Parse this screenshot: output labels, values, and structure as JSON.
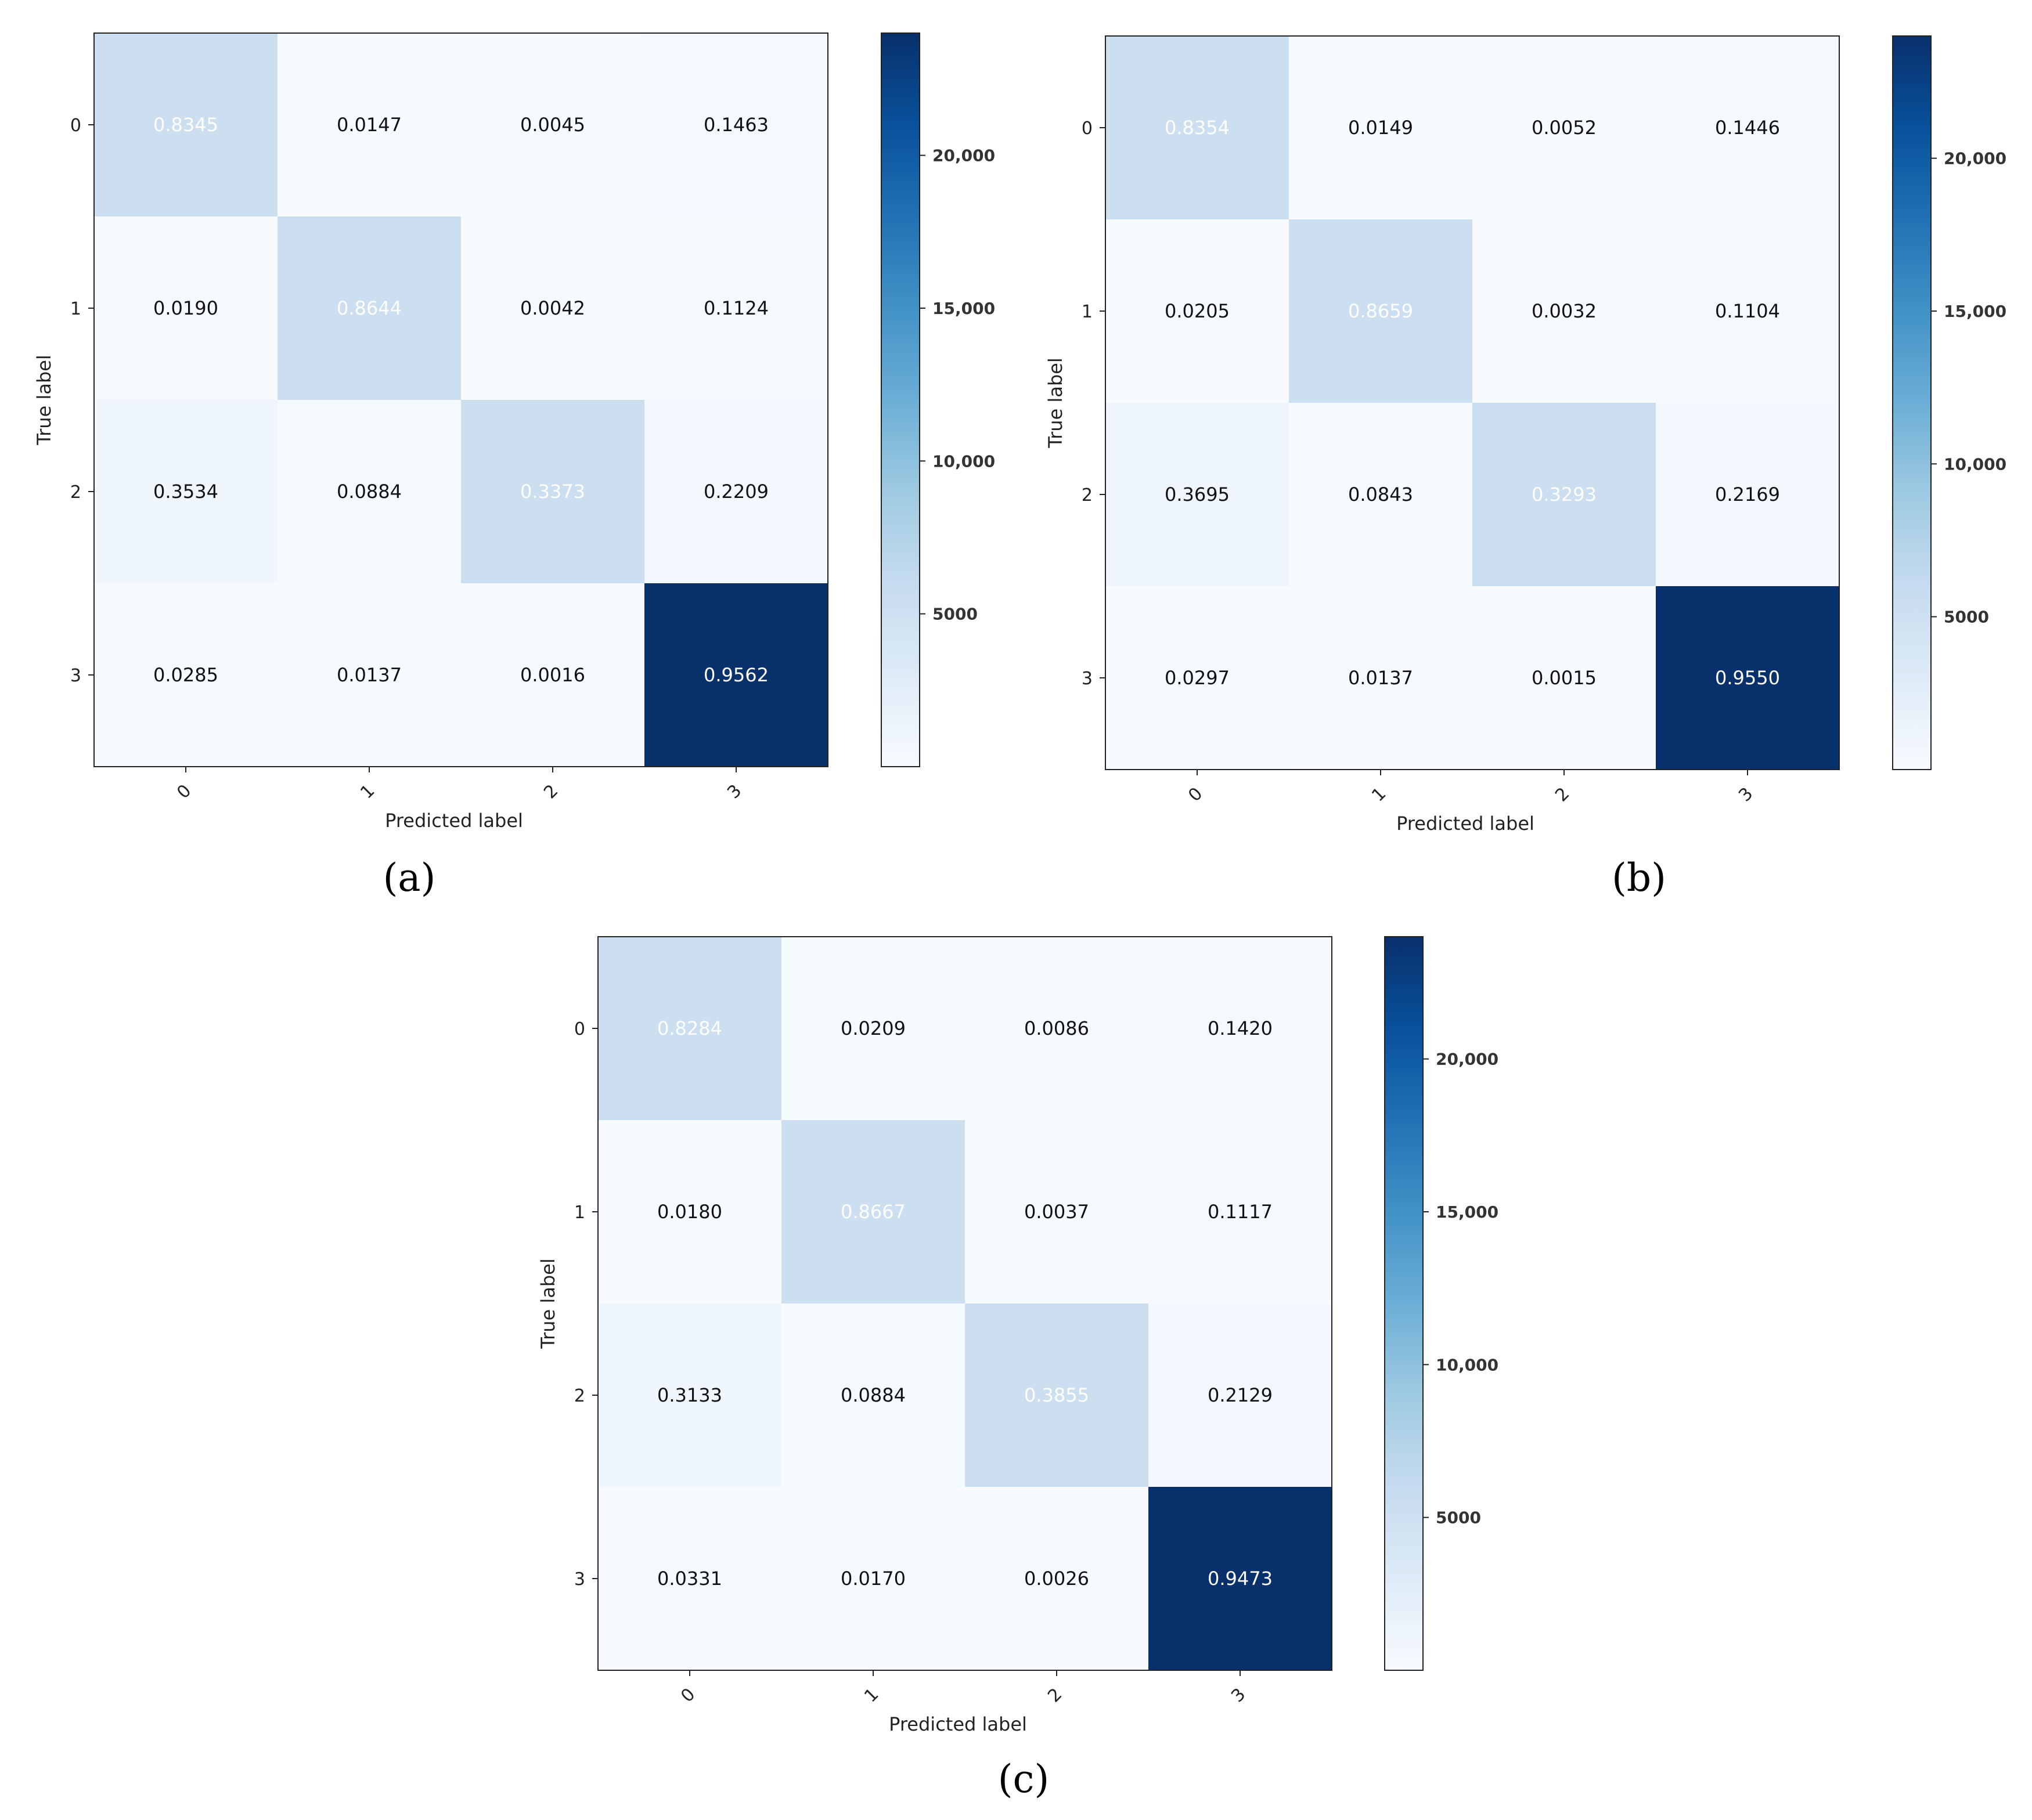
{
  "chart_data": [
    {
      "type": "heatmap",
      "panel_label": "(a)",
      "xlabel": "Predicted label",
      "ylabel": "True label",
      "x_ticks": [
        "0",
        "1",
        "2",
        "3"
      ],
      "y_ticks": [
        "0",
        "1",
        "2",
        "3"
      ],
      "values": [
        [
          "0.8345",
          "0.0147",
          "0.0045",
          "0.1463"
        ],
        [
          "0.0190",
          "0.8644",
          "0.0042",
          "0.1124"
        ],
        [
          "0.3534",
          "0.0884",
          "0.3373",
          "0.2209"
        ],
        [
          "0.0285",
          "0.0137",
          "0.0016",
          "0.9562"
        ]
      ],
      "colorbar": {
        "range": [
          0,
          24000
        ],
        "ticks": [
          5000,
          10000,
          15000,
          20000
        ],
        "tick_labels": [
          "5000",
          "10,000",
          "15,000",
          "20,000"
        ],
        "colormap": "Blues"
      }
    },
    {
      "type": "heatmap",
      "panel_label": "(b)",
      "xlabel": "Predicted label",
      "ylabel": "True label",
      "x_ticks": [
        "0",
        "1",
        "2",
        "3"
      ],
      "y_ticks": [
        "0",
        "1",
        "2",
        "3"
      ],
      "values": [
        [
          "0.8354",
          "0.0149",
          "0.0052",
          "0.1446"
        ],
        [
          "0.0205",
          "0.8659",
          "0.0032",
          "0.1104"
        ],
        [
          "0.3695",
          "0.0843",
          "0.3293",
          "0.2169"
        ],
        [
          "0.0297",
          "0.0137",
          "0.0015",
          "0.9550"
        ]
      ],
      "colorbar": {
        "range": [
          0,
          24000
        ],
        "ticks": [
          5000,
          10000,
          15000,
          20000
        ],
        "tick_labels": [
          "5000",
          "10,000",
          "15,000",
          "20,000"
        ],
        "colormap": "Blues"
      }
    },
    {
      "type": "heatmap",
      "panel_label": "(c)",
      "xlabel": "Predicted label",
      "ylabel": "True label",
      "x_ticks": [
        "0",
        "1",
        "2",
        "3"
      ],
      "y_ticks": [
        "0",
        "1",
        "2",
        "3"
      ],
      "values": [
        [
          "0.8284",
          "0.0209",
          "0.0086",
          "0.1420"
        ],
        [
          "0.0180",
          "0.8667",
          "0.0037",
          "0.1117"
        ],
        [
          "0.3133",
          "0.0884",
          "0.3855",
          "0.2129"
        ],
        [
          "0.0331",
          "0.0170",
          "0.0026",
          "0.9473"
        ]
      ],
      "colorbar": {
        "range": [
          0,
          24000
        ],
        "ticks": [
          5000,
          10000,
          15000,
          20000
        ],
        "tick_labels": [
          "5000",
          "10,000",
          "15,000",
          "20,000"
        ],
        "colormap": "Blues"
      }
    }
  ]
}
